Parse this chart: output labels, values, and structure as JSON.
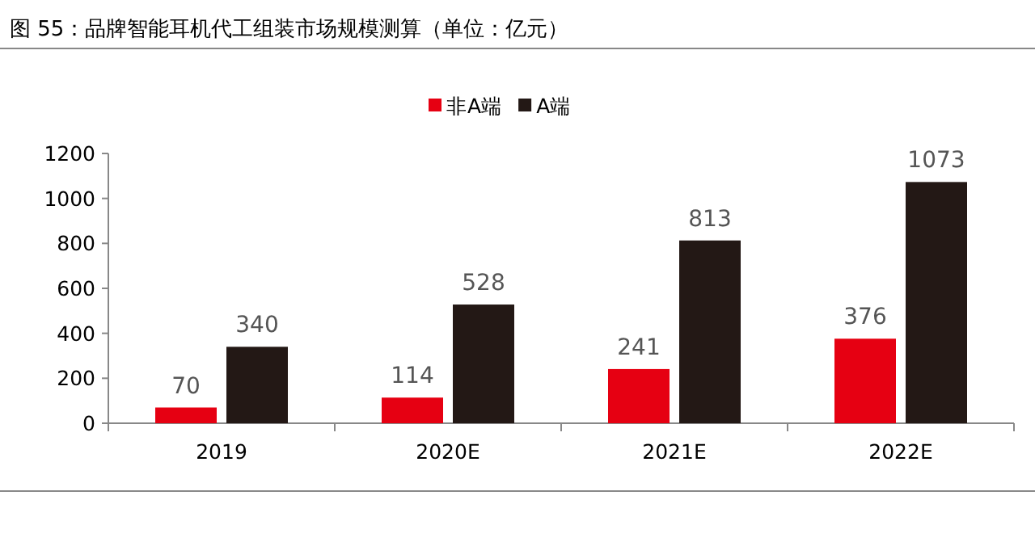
{
  "chart_data": {
    "type": "bar",
    "title": "图 55：品牌智能耳机代工组装市场规模测算（单位：亿元）",
    "categories": [
      "2019",
      "2020E",
      "2021E",
      "2022E"
    ],
    "series": [
      {
        "name": "非A端",
        "color": "#e60012",
        "values": [
          70,
          114,
          241,
          376
        ]
      },
      {
        "name": "A端",
        "color": "#231815",
        "values": [
          340,
          528,
          813,
          1073
        ]
      }
    ],
    "ylim": [
      0,
      1200
    ],
    "yticks": [
      0,
      200,
      400,
      600,
      800,
      1000,
      1200
    ],
    "data_labels": true,
    "legend": "top",
    "grid": false
  }
}
